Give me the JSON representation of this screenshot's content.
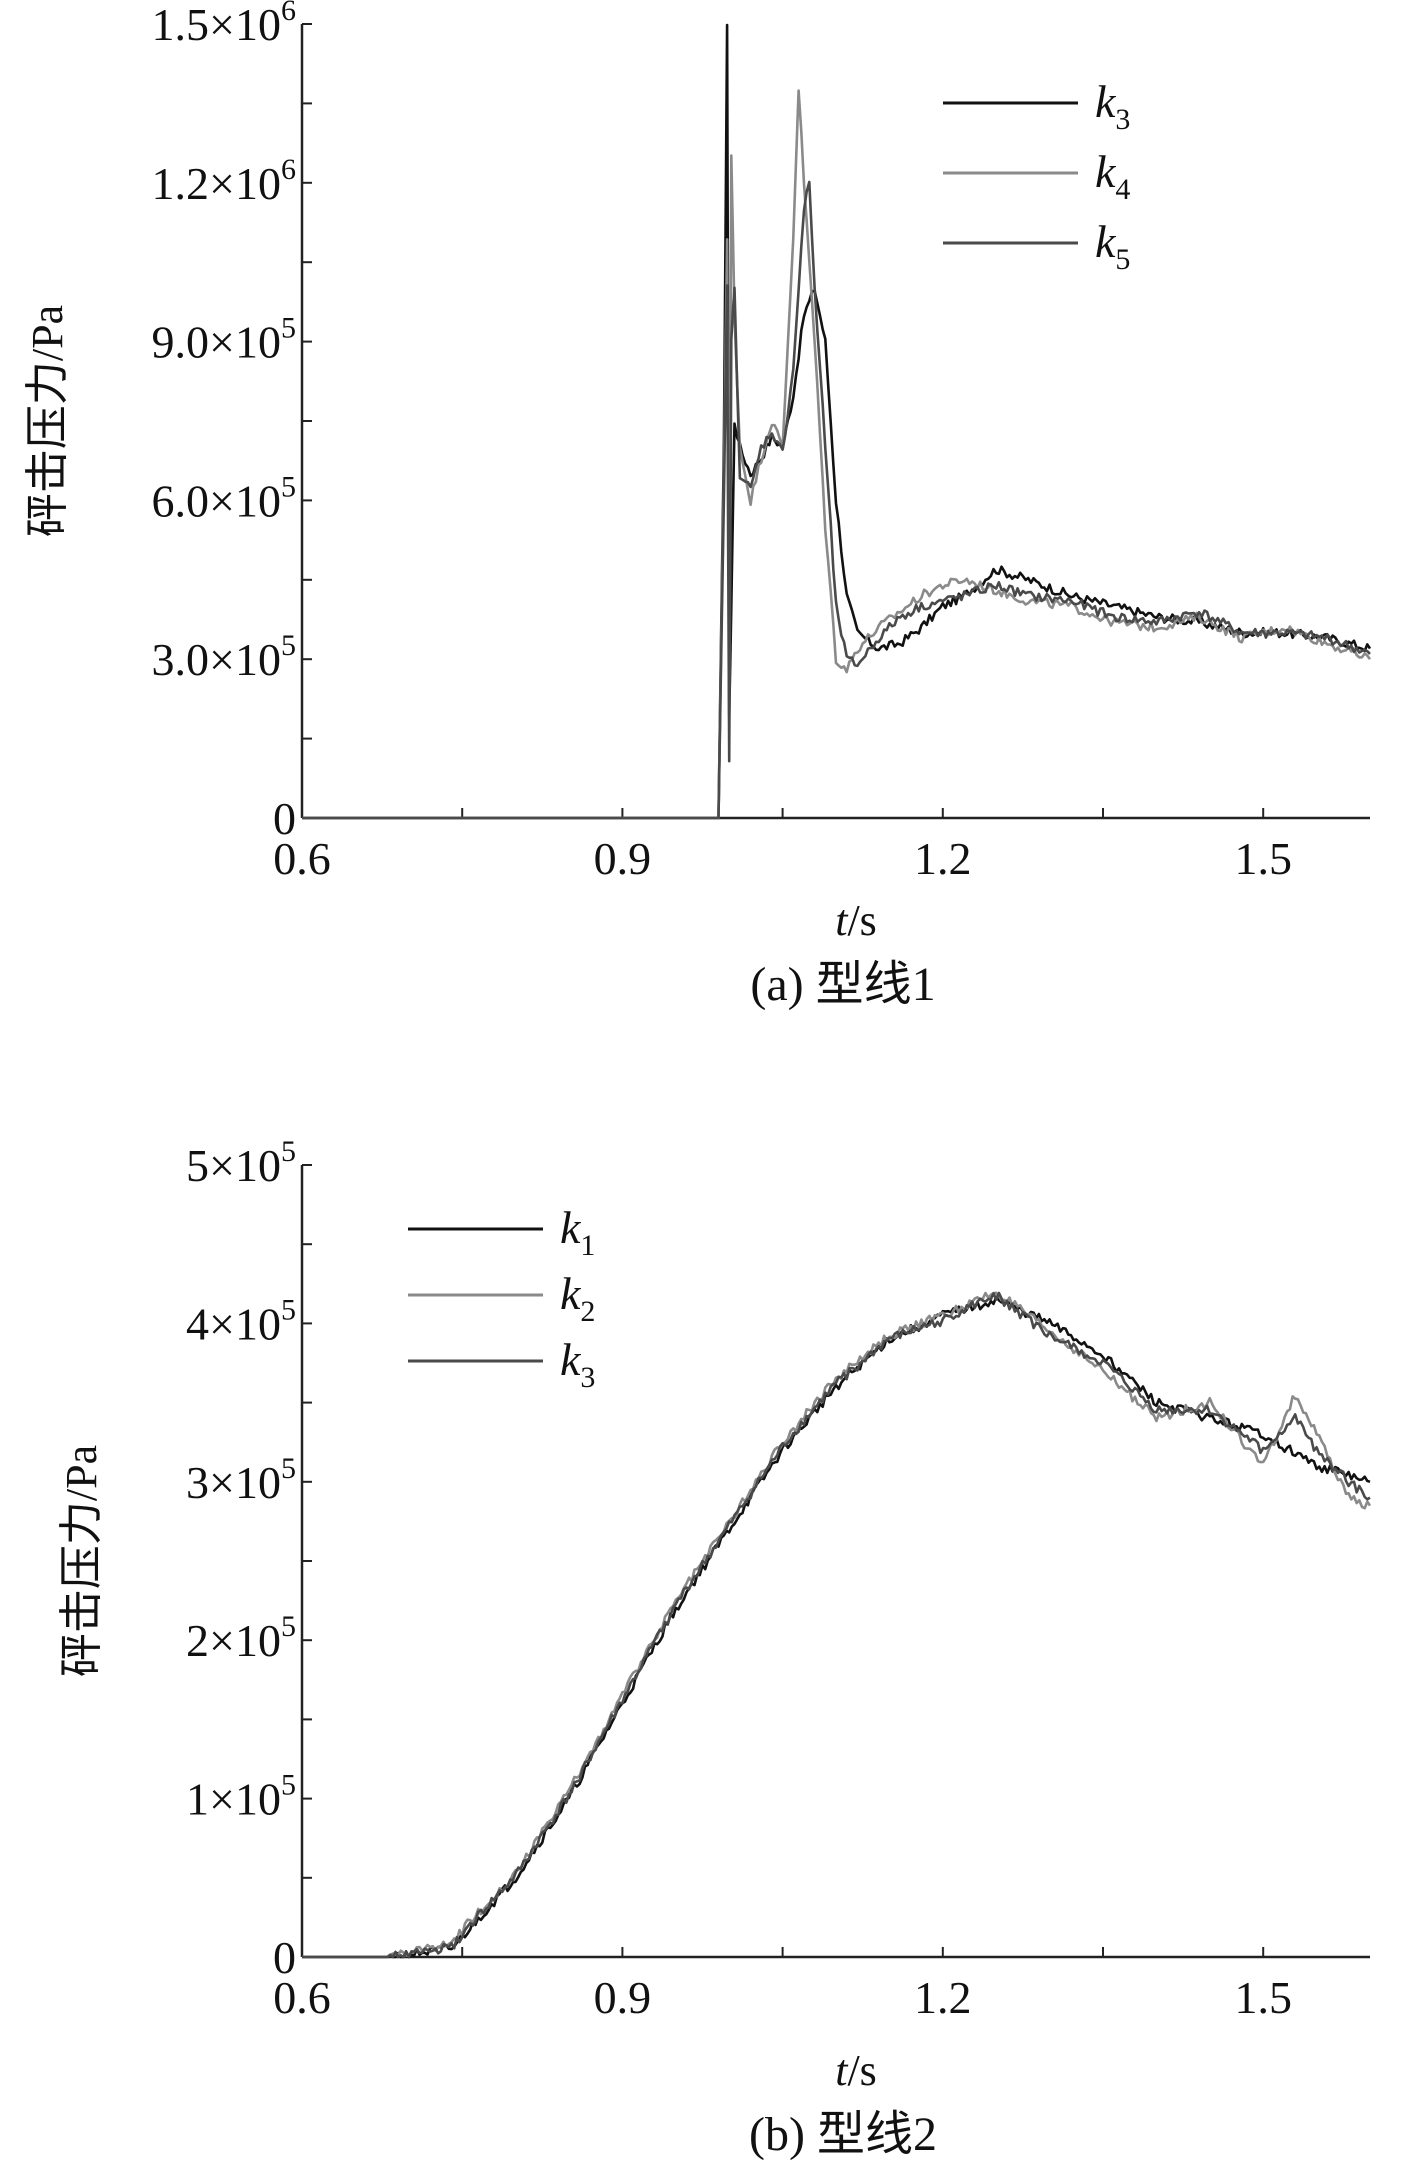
{
  "chart_data": [
    {
      "type": "line",
      "caption": "(a) 型线1",
      "xlabel": "t/s",
      "ylabel": "砰击压力/Pa",
      "xlim": [
        0.6,
        1.6
      ],
      "ylim": [
        0,
        1500000
      ],
      "xticks": [
        {
          "value": 0.6,
          "label": "0.6"
        },
        {
          "value": 0.9,
          "label": "0.9"
        },
        {
          "value": 1.2,
          "label": "1.2"
        },
        {
          "value": 1.5,
          "label": "1.5"
        }
      ],
      "yticks": [
        {
          "value": 0,
          "mant": "0",
          "exp": ""
        },
        {
          "value": 300000,
          "mant": "3.0×10",
          "exp": "5"
        },
        {
          "value": 600000,
          "mant": "6.0×10",
          "exp": "5"
        },
        {
          "value": 900000,
          "mant": "9.0×10",
          "exp": "5"
        },
        {
          "value": 1200000,
          "mant": "1.2×10",
          "exp": "6"
        },
        {
          "value": 1500000,
          "mant": "1.5×10",
          "exp": "6"
        }
      ],
      "legend_position": "top-right",
      "series": [
        {
          "name": "k",
          "sub": "3",
          "color": "#111111",
          "x": [
            0.6,
            0.99,
            0.995,
            0.998,
            1.0,
            1.002,
            1.005,
            1.01,
            1.02,
            1.03,
            1.04,
            1.05,
            1.06,
            1.07,
            1.08,
            1.09,
            1.1,
            1.11,
            1.12,
            1.14,
            1.16,
            1.18,
            1.2,
            1.22,
            1.25,
            1.28,
            1.32,
            1.36,
            1.4,
            1.44,
            1.48,
            1.52,
            1.56,
            1.6
          ],
          "y": [
            0,
            0,
            700000,
            1500000,
            200000,
            400000,
            750000,
            700000,
            650000,
            680000,
            720000,
            700000,
            800000,
            950000,
            1000000,
            900000,
            600000,
            420000,
            350000,
            320000,
            330000,
            360000,
            400000,
            420000,
            470000,
            450000,
            420000,
            400000,
            380000,
            370000,
            350000,
            350000,
            340000,
            320000
          ]
        },
        {
          "name": "k",
          "sub": "4",
          "color": "#8a8a8a",
          "x": [
            0.6,
            0.99,
            0.995,
            0.998,
            1.0,
            1.002,
            1.005,
            1.01,
            1.02,
            1.03,
            1.04,
            1.05,
            1.06,
            1.065,
            1.07,
            1.08,
            1.09,
            1.1,
            1.11,
            1.12,
            1.14,
            1.16,
            1.18,
            1.2,
            1.22,
            1.25,
            1.28,
            1.32,
            1.36,
            1.4,
            1.44,
            1.48,
            1.52,
            1.56,
            1.6
          ],
          "y": [
            0,
            0,
            650000,
            1100000,
            300000,
            1250000,
            950000,
            700000,
            600000,
            680000,
            750000,
            700000,
            1100000,
            1380000,
            1200000,
            900000,
            550000,
            300000,
            280000,
            320000,
            360000,
            390000,
            420000,
            440000,
            450000,
            430000,
            410000,
            400000,
            370000,
            360000,
            380000,
            340000,
            360000,
            330000,
            300000
          ]
        },
        {
          "name": "k",
          "sub": "5",
          "color": "#4a4a4a",
          "x": [
            0.6,
            0.99,
            0.995,
            0.998,
            1.0,
            1.002,
            1.005,
            1.01,
            1.02,
            1.03,
            1.04,
            1.05,
            1.06,
            1.07,
            1.075,
            1.08,
            1.09,
            1.1,
            1.11,
            1.12,
            1.14,
            1.16,
            1.18,
            1.2,
            1.22,
            1.25,
            1.28,
            1.32,
            1.36,
            1.4,
            1.44,
            1.48,
            1.52,
            1.56,
            1.6
          ],
          "y": [
            0,
            0,
            600000,
            1000000,
            100000,
            900000,
            1000000,
            650000,
            620000,
            700000,
            730000,
            690000,
            850000,
            1150000,
            1200000,
            1000000,
            700000,
            400000,
            300000,
            290000,
            340000,
            380000,
            400000,
            410000,
            420000,
            440000,
            420000,
            410000,
            380000,
            370000,
            390000,
            350000,
            350000,
            340000,
            310000
          ]
        }
      ]
    },
    {
      "type": "line",
      "caption": "(b) 型线2",
      "xlabel": "t/s",
      "ylabel": "砰击压力/Pa",
      "xlim": [
        0.6,
        1.6
      ],
      "ylim": [
        0,
        500000
      ],
      "xticks": [
        {
          "value": 0.6,
          "label": "0.6"
        },
        {
          "value": 0.9,
          "label": "0.9"
        },
        {
          "value": 1.2,
          "label": "1.2"
        },
        {
          "value": 1.5,
          "label": "1.5"
        }
      ],
      "yticks": [
        {
          "value": 0,
          "mant": "0",
          "exp": ""
        },
        {
          "value": 100000,
          "mant": "1×10",
          "exp": "5"
        },
        {
          "value": 200000,
          "mant": "2×10",
          "exp": "5"
        },
        {
          "value": 300000,
          "mant": "3×10",
          "exp": "5"
        },
        {
          "value": 400000,
          "mant": "4×10",
          "exp": "5"
        },
        {
          "value": 500000,
          "mant": "5×10",
          "exp": "5"
        }
      ],
      "legend_position": "top-left",
      "series": [
        {
          "name": "k",
          "sub": "1",
          "color": "#111111",
          "x": [
            0.6,
            0.68,
            0.74,
            0.76,
            0.8,
            0.85,
            0.9,
            0.95,
            1.0,
            1.05,
            1.1,
            1.15,
            1.2,
            1.25,
            1.3,
            1.35,
            1.4,
            1.45,
            1.5,
            1.55,
            1.6
          ],
          "y": [
            0,
            0,
            5000,
            20000,
            50000,
            100000,
            160000,
            220000,
            270000,
            320000,
            360000,
            390000,
            405000,
            415000,
            400000,
            380000,
            350000,
            340000,
            330000,
            310000,
            300000
          ]
        },
        {
          "name": "k",
          "sub": "2",
          "color": "#8a8a8a",
          "x": [
            0.6,
            0.68,
            0.74,
            0.76,
            0.8,
            0.85,
            0.9,
            0.95,
            1.0,
            1.05,
            1.1,
            1.15,
            1.2,
            1.25,
            1.3,
            1.35,
            1.4,
            1.45,
            1.5,
            1.53,
            1.55,
            1.58,
            1.6
          ],
          "y": [
            0,
            0,
            8000,
            25000,
            52000,
            105000,
            165000,
            225000,
            275000,
            325000,
            365000,
            392000,
            405000,
            420000,
            395000,
            370000,
            340000,
            350000,
            310000,
            355000,
            330000,
            290000,
            285000
          ]
        },
        {
          "name": "k",
          "sub": "3",
          "color": "#4a4a4a",
          "x": [
            0.6,
            0.68,
            0.74,
            0.76,
            0.8,
            0.85,
            0.9,
            0.95,
            1.0,
            1.05,
            1.1,
            1.15,
            1.2,
            1.25,
            1.3,
            1.35,
            1.4,
            1.45,
            1.5,
            1.53,
            1.55,
            1.58,
            1.6
          ],
          "y": [
            0,
            0,
            6000,
            22000,
            51000,
            102000,
            162000,
            222000,
            272000,
            322000,
            362000,
            390000,
            402000,
            418000,
            392000,
            375000,
            345000,
            345000,
            320000,
            340000,
            320000,
            300000,
            290000
          ]
        }
      ]
    }
  ]
}
